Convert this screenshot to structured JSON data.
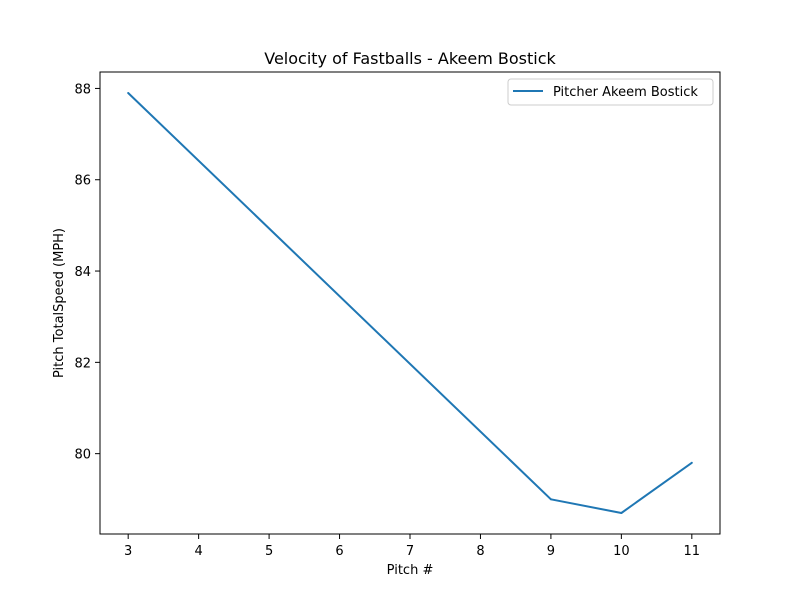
{
  "chart_data": {
    "type": "line",
    "title": "Velocity of Fastballs - Akeem Bostick",
    "xlabel": "Pitch #",
    "ylabel": "Pitch TotalSpeed (MPH)",
    "x": [
      3,
      9,
      10,
      11
    ],
    "series": [
      {
        "name": "Pitcher Akeem Bostick",
        "color": "#1f77b4",
        "values": [
          87.9,
          79.0,
          78.7,
          79.8
        ]
      }
    ],
    "xticks": [
      3,
      4,
      5,
      6,
      7,
      8,
      9,
      10,
      11
    ],
    "yticks": [
      80,
      82,
      84,
      86,
      88
    ],
    "xlim": [
      2.6,
      11.4
    ],
    "ylim": [
      78.24,
      88.36
    ],
    "grid": false,
    "legend_position": "top-right"
  }
}
